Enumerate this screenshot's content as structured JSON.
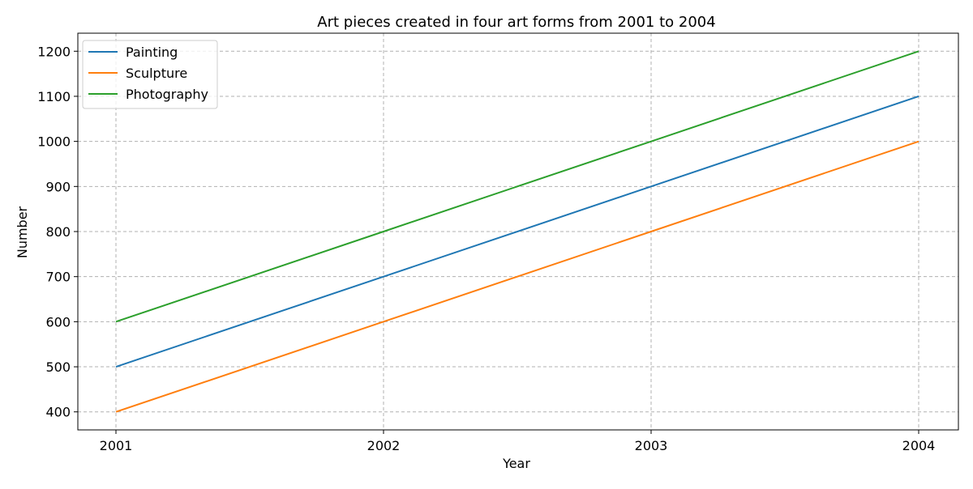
{
  "chart_data": {
    "type": "line",
    "title": "Art pieces created in four art forms from 2001 to 2004",
    "xlabel": "Year",
    "ylabel": "Number",
    "x": [
      "2001",
      "2002",
      "2003",
      "2004"
    ],
    "series": [
      {
        "name": "Painting",
        "values": [
          500,
          700,
          900,
          1100
        ],
        "color": "#1f77b4"
      },
      {
        "name": "Sculpture",
        "values": [
          400,
          600,
          800,
          1000
        ],
        "color": "#ff7f0e"
      },
      {
        "name": "Photography",
        "values": [
          600,
          800,
          1000,
          1200
        ],
        "color": "#2ca02c"
      }
    ],
    "y_ticks": [
      400,
      500,
      600,
      700,
      800,
      900,
      1000,
      1100,
      1200
    ],
    "ylim": [
      360,
      1240
    ],
    "grid": true,
    "grid_style": "dashed",
    "legend_position": "top-left"
  }
}
